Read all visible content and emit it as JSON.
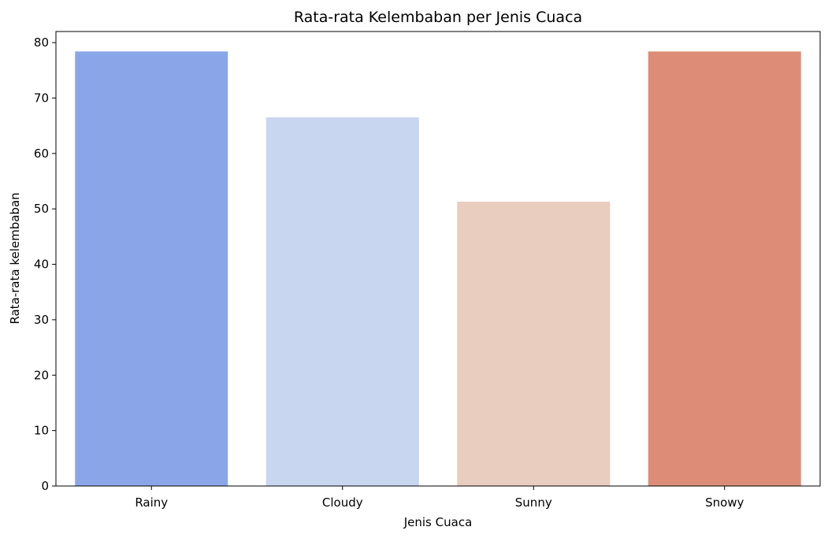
{
  "chart_data": {
    "type": "bar",
    "title": "Rata-rata Kelembaban per Jenis Cuaca",
    "xlabel": "Jenis Cuaca",
    "ylabel": "Rata-rata kelembaban",
    "categories": [
      "Rainy",
      "Cloudy",
      "Sunny",
      "Snowy"
    ],
    "values": [
      78.4,
      66.5,
      51.3,
      78.4
    ],
    "colors": [
      "#8aa6e8",
      "#c8d6f0",
      "#e9cdbf",
      "#dd8d77"
    ],
    "ylim": [
      0,
      82
    ],
    "yticks": [
      0,
      10,
      20,
      30,
      40,
      50,
      60,
      70,
      80
    ],
    "grid": false,
    "legend": "none"
  }
}
